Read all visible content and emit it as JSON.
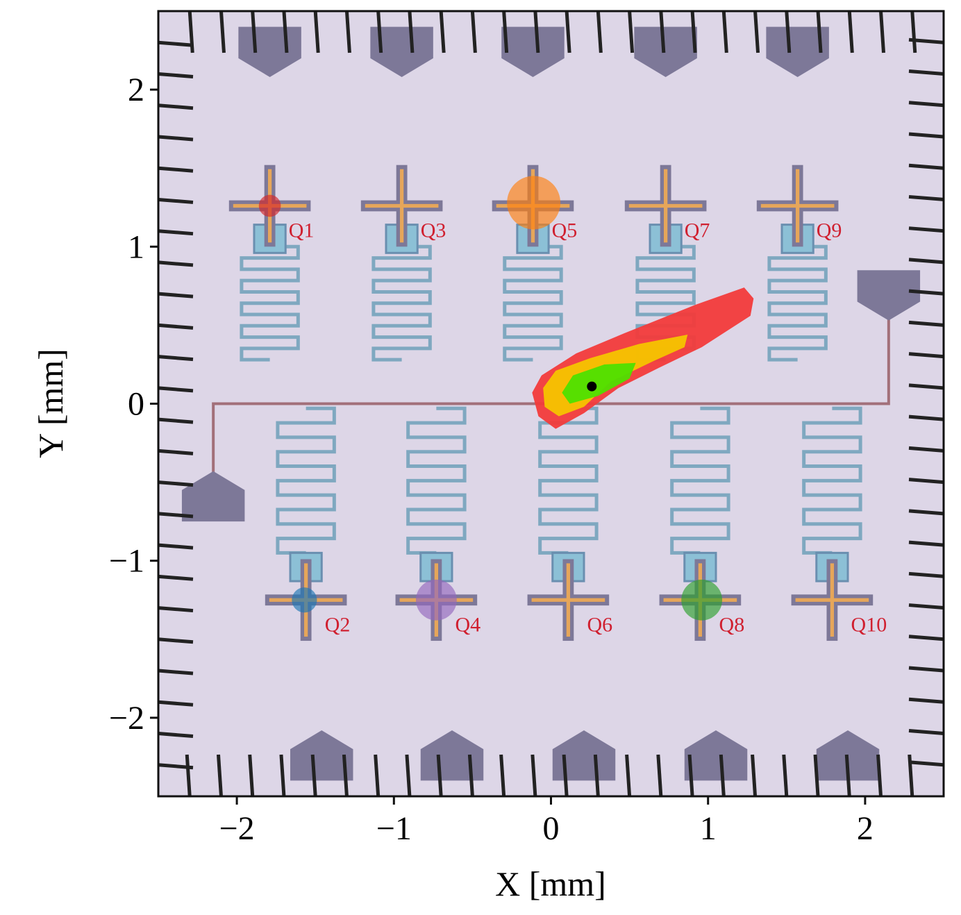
{
  "chart_data": {
    "type": "scatter",
    "xlabel": "X [mm]",
    "ylabel": "Y [mm]",
    "xlim": [
      -2.5,
      2.5
    ],
    "ylim": [
      -2.5,
      2.5
    ],
    "xticks": [
      {
        "value": -2,
        "label": "−2"
      },
      {
        "value": -1,
        "label": "−1"
      },
      0,
      1,
      2
    ],
    "yticks": [
      {
        "value": -2,
        "label": "−2"
      },
      {
        "value": -1,
        "label": "−1"
      },
      0,
      1,
      2
    ],
    "qubits": {
      "labels": [
        "Q1",
        "Q3",
        "Q5",
        "Q7",
        "Q9",
        "Q2",
        "Q4",
        "Q6",
        "Q8",
        "Q10"
      ],
      "x": [
        -1.79,
        -0.95,
        -0.115,
        0.73,
        1.57,
        -1.56,
        -0.73,
        0.11,
        0.95,
        1.79
      ],
      "y": [
        1.26,
        1.26,
        1.26,
        1.26,
        1.26,
        -1.25,
        -1.25,
        -1.25,
        -1.25,
        -1.25
      ]
    },
    "markers": {
      "x": [
        -1.79,
        -1.57,
        -0.73,
        -0.11,
        0.96
      ],
      "y": [
        1.26,
        -1.25,
        -1.25,
        1.28,
        -1.25
      ],
      "radius": [
        0.07,
        0.08,
        0.13,
        0.17,
        0.13
      ],
      "colors": [
        "#d62728",
        "#1f77b4",
        "#9467bd",
        "#ff7f0e",
        "#2ca02c"
      ]
    },
    "contours": [
      {
        "color": "#f23b3b",
        "x": [
          -0.12,
          -0.06,
          0.16,
          0.47,
          0.92,
          1.23,
          1.29,
          1.27,
          0.96,
          0.69,
          0.43,
          0.21,
          0.03,
          -0.08
        ],
        "y": [
          0.07,
          0.18,
          0.32,
          0.45,
          0.63,
          0.74,
          0.67,
          0.56,
          0.36,
          0.23,
          0.1,
          -0.06,
          -0.16,
          -0.08
        ]
      },
      {
        "color": "#f5c400",
        "x": [
          -0.05,
          0.03,
          0.25,
          0.56,
          0.87,
          0.85,
          0.65,
          0.38,
          0.21,
          0.05,
          -0.04
        ],
        "y": [
          0.1,
          0.21,
          0.29,
          0.38,
          0.44,
          0.36,
          0.27,
          0.14,
          -0.02,
          -0.08,
          -0.02
        ]
      },
      {
        "color": "#4ee000",
        "x": [
          0.07,
          0.14,
          0.34,
          0.54,
          0.5,
          0.3,
          0.12
        ],
        "y": [
          0.07,
          0.18,
          0.25,
          0.26,
          0.16,
          0.05,
          0.0
        ]
      }
    ],
    "best": {
      "x": 0.26,
      "y": 0.11,
      "color": "#000000"
    }
  }
}
